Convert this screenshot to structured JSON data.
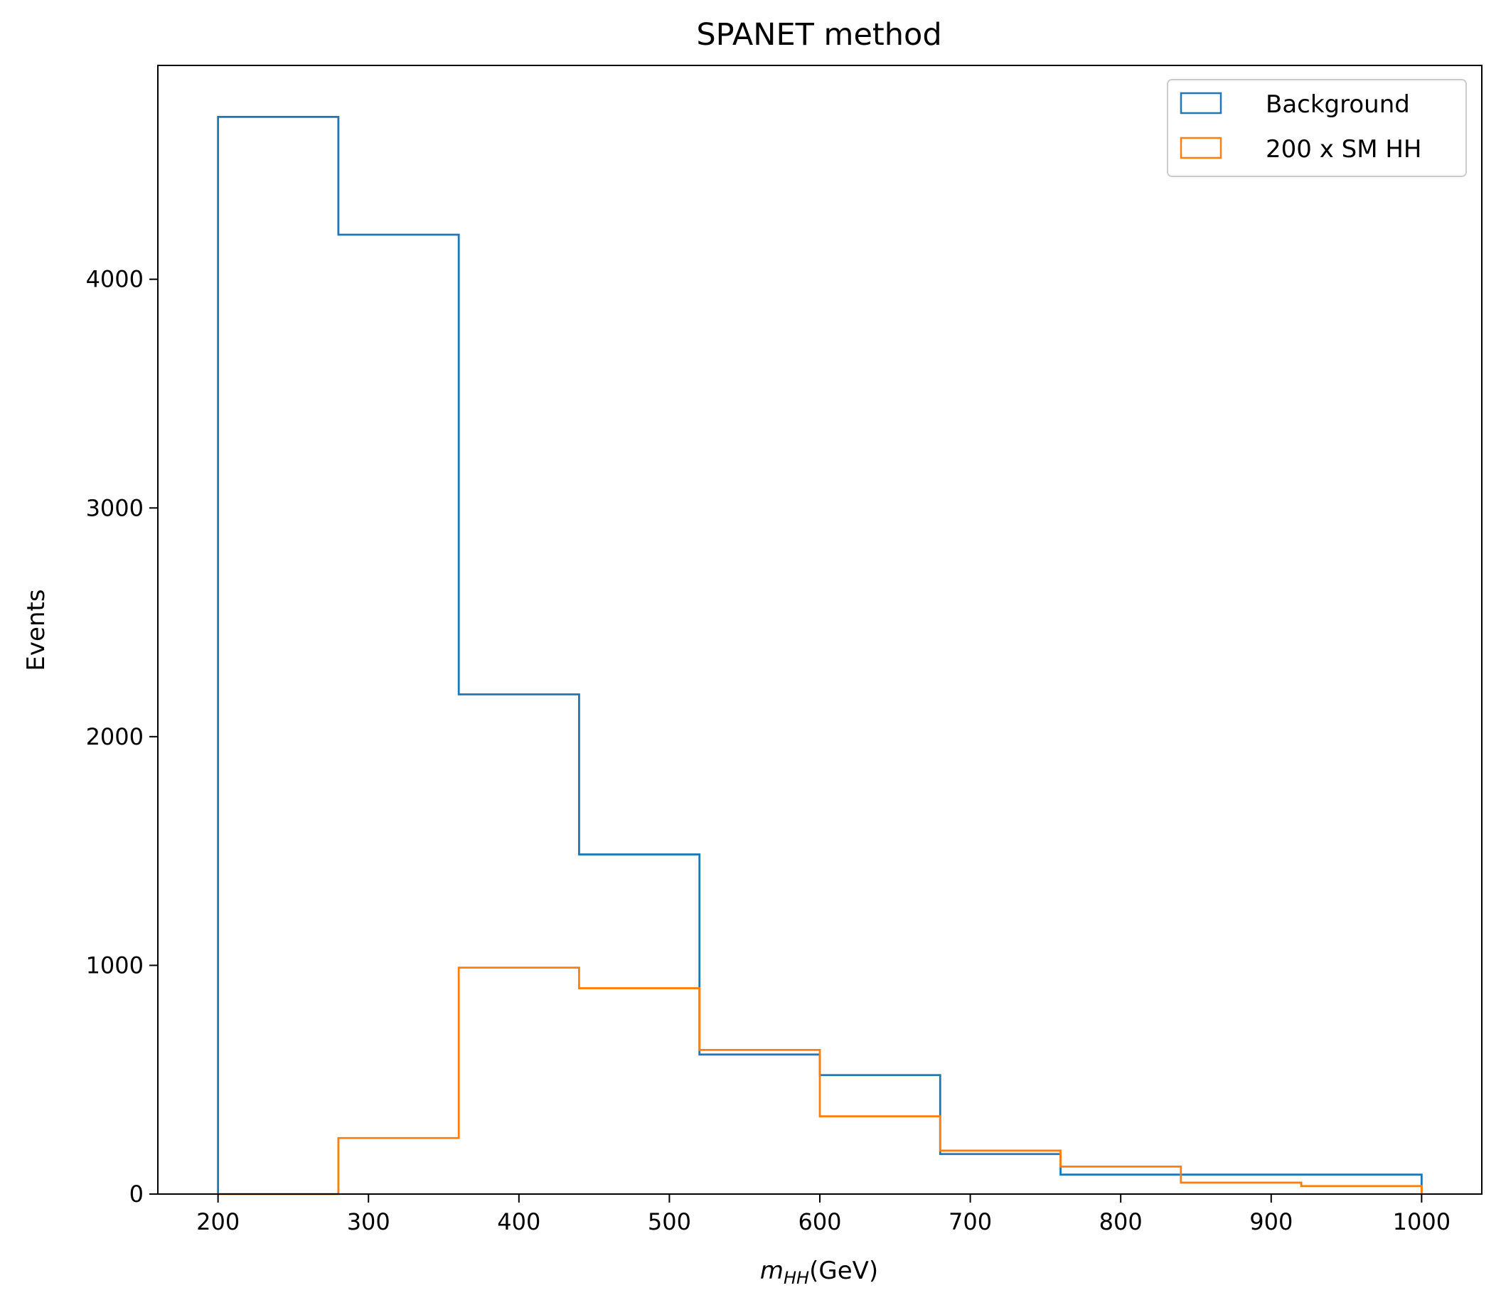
{
  "chart_data": {
    "type": "histogram",
    "title": "SPANET method",
    "xlabel_main": "m",
    "xlabel_sub": "HH",
    "xlabel_unit": "(GeV)",
    "ylabel": "Events",
    "xlim": [
      160,
      1040
    ],
    "ylim": [
      0,
      4935
    ],
    "bin_edges": [
      200,
      280,
      360,
      440,
      520,
      600,
      680,
      760,
      840,
      920,
      1000
    ],
    "xticks": [
      "200",
      "300",
      "400",
      "500",
      "600",
      "700",
      "800",
      "900",
      "1000"
    ],
    "yticks": [
      "0",
      "1000",
      "2000",
      "3000",
      "4000"
    ],
    "legend_position": "top-right",
    "series": [
      {
        "name": "Background",
        "color": "#1f77b4",
        "values": [
          4710,
          4195,
          2185,
          1485,
          610,
          520,
          175,
          85,
          85,
          85
        ]
      },
      {
        "name": "200 x SM HH",
        "color": "#ff7f0e",
        "values": [
          0,
          245,
          990,
          900,
          630,
          340,
          190,
          120,
          50,
          35
        ]
      }
    ]
  }
}
